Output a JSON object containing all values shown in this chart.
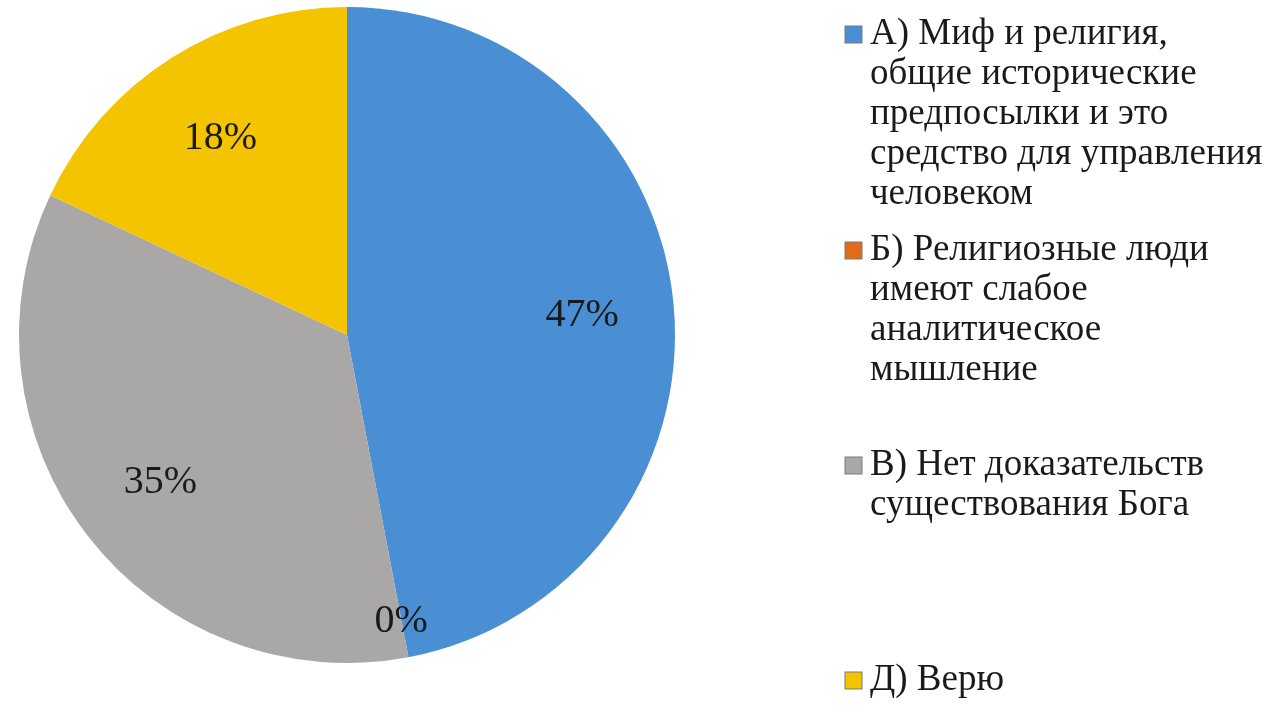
{
  "chart_data": {
    "type": "pie",
    "categories": [
      "А) Миф и религия, общие исторические предпосылки и это средство для управления человеком",
      "Б) Религиозные люди имеют слабое аналитическое мышление",
      "В) Нет доказательств существования Бога",
      "Д) Верю"
    ],
    "values": [
      47,
      0,
      35,
      18
    ],
    "value_labels": [
      "47%",
      "0%",
      "35%",
      "18%"
    ],
    "colors": [
      "#4a8fd4",
      "#e06c1a",
      "#aaa7a7",
      "#f5c400"
    ],
    "legend": "right"
  }
}
